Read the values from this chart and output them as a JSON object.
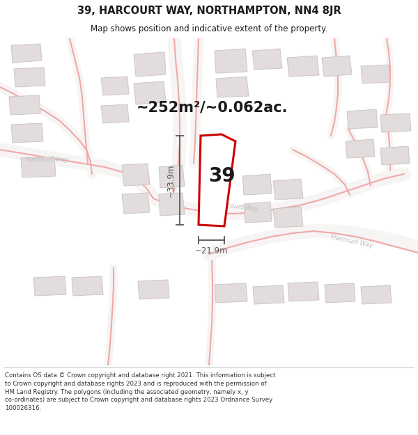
{
  "title": "39, HARCOURT WAY, NORTHAMPTON, NN4 8JR",
  "subtitle": "Map shows position and indicative extent of the property.",
  "area_label": "~252m²/~0.062ac.",
  "number_label": "39",
  "width_label": "~21.9m",
  "height_label": "~33.9m",
  "footer_line1": "Contains OS data © Crown copyright and database right 2021. This information is subject",
  "footer_line2": "to Crown copyright and database rights 2023 and is reproduced with the permission of",
  "footer_line3": "HM Land Registry. The polygons (including the associated geometry, namely x, y",
  "footer_line4": "co-ordinates) are subject to Crown copyright and database rights 2023 Ordnance Survey",
  "footer_line5": "100026316.",
  "bg_color": "#f7f4f4",
  "road_color": "#f0a8a8",
  "building_fill": "#e2dcdc",
  "building_edge": "#ccc6c6",
  "plot_fill": "#ffffff",
  "plot_edge": "#cc0000",
  "dim_color": "#555555",
  "text_color": "#1a1a1a",
  "road_label_color": "#bbbbbb",
  "title_fontsize": 10.5,
  "subtitle_fontsize": 8.5,
  "footer_fontsize": 6.2,
  "area_fontsize": 15,
  "number_fontsize": 20,
  "dim_fontsize": 8.5
}
